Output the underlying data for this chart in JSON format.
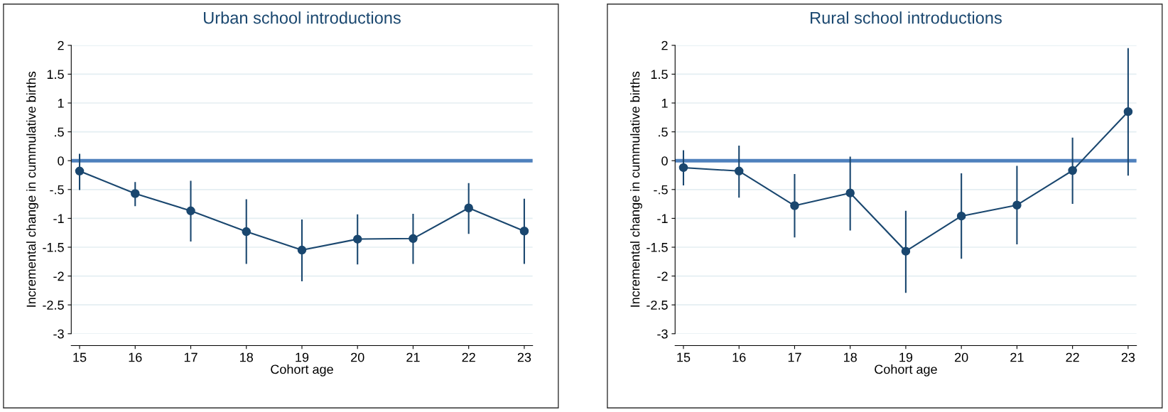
{
  "chart_data": [
    {
      "type": "line",
      "title": "Urban school introductions",
      "xlabel": "Cohort age",
      "ylabel": "Incremental change in cummulative births",
      "x": [
        15,
        16,
        17,
        18,
        19,
        20,
        21,
        22,
        23
      ],
      "series": [
        {
          "color": "#1a476f",
          "values": [
            -0.18,
            -0.57,
            -0.87,
            -1.23,
            -1.55,
            -1.36,
            -1.35,
            -0.82,
            -1.22
          ],
          "errors": [
            [
              -0.51,
              0.12
            ],
            [
              -0.79,
              -0.37
            ],
            [
              -1.4,
              -0.35
            ],
            [
              -1.79,
              -0.67
            ],
            [
              -2.09,
              -1.02
            ],
            [
              -1.8,
              -0.93
            ],
            [
              -1.79,
              -0.92
            ],
            [
              -1.27,
              -0.39
            ],
            [
              -1.79,
              -0.66
            ]
          ]
        }
      ],
      "xlim": [
        14.85,
        23.15
      ],
      "xticks": [
        15,
        16,
        17,
        18,
        19,
        20,
        21,
        22,
        23
      ],
      "ylim": [
        -3,
        2
      ],
      "yticks": [
        {
          "value": -3,
          "label": "-3"
        },
        {
          "value": -2.5,
          "label": "-2.5"
        },
        {
          "value": -2,
          "label": "-2"
        },
        {
          "value": -1.5,
          "label": "-1.5"
        },
        {
          "value": -1,
          "label": "-1"
        },
        {
          "value": -0.5,
          "label": "-.5"
        },
        0,
        {
          "value": 0.5,
          "label": ".5"
        },
        1,
        1.5,
        2
      ],
      "ref_lines": [
        {
          "axis": "y",
          "value": 0,
          "color": "#4f81bd"
        }
      ],
      "grid": "y",
      "marker": "circle",
      "line_style": "solid",
      "legend": false
    },
    {
      "type": "line",
      "title": "Rural school introductions",
      "xlabel": "Cohort age",
      "ylabel": "Incremental change in cummulative births",
      "x": [
        15,
        16,
        17,
        18,
        19,
        20,
        21,
        22,
        23
      ],
      "series": [
        {
          "color": "#1a476f",
          "values": [
            -0.12,
            -0.18,
            -0.78,
            -0.56,
            -1.57,
            -0.96,
            -0.77,
            -0.17,
            0.85
          ],
          "errors": [
            [
              -0.43,
              0.18
            ],
            [
              -0.64,
              0.26
            ],
            [
              -1.33,
              -0.23
            ],
            [
              -1.21,
              0.07
            ],
            [
              -2.29,
              -0.87
            ],
            [
              -1.7,
              -0.22
            ],
            [
              -1.45,
              -0.09
            ],
            [
              -0.75,
              0.4
            ],
            [
              -0.26,
              1.95
            ]
          ]
        }
      ],
      "xlim": [
        14.85,
        23.15
      ],
      "xticks": [
        15,
        16,
        17,
        18,
        19,
        20,
        21,
        22,
        23
      ],
      "ylim": [
        -3,
        2
      ],
      "yticks": [
        {
          "value": -3,
          "label": "-3"
        },
        {
          "value": -2.5,
          "label": "-2.5"
        },
        {
          "value": -2,
          "label": "-2"
        },
        {
          "value": -1.5,
          "label": "-1.5"
        },
        {
          "value": -1,
          "label": "-1"
        },
        {
          "value": -0.5,
          "label": "-.5"
        },
        0,
        {
          "value": 0.5,
          "label": ".5"
        },
        1,
        1.5,
        2
      ],
      "ref_lines": [
        {
          "axis": "y",
          "value": 0,
          "color": "#4f81bd"
        }
      ],
      "grid": "y",
      "marker": "circle",
      "line_style": "solid",
      "legend": false
    }
  ]
}
